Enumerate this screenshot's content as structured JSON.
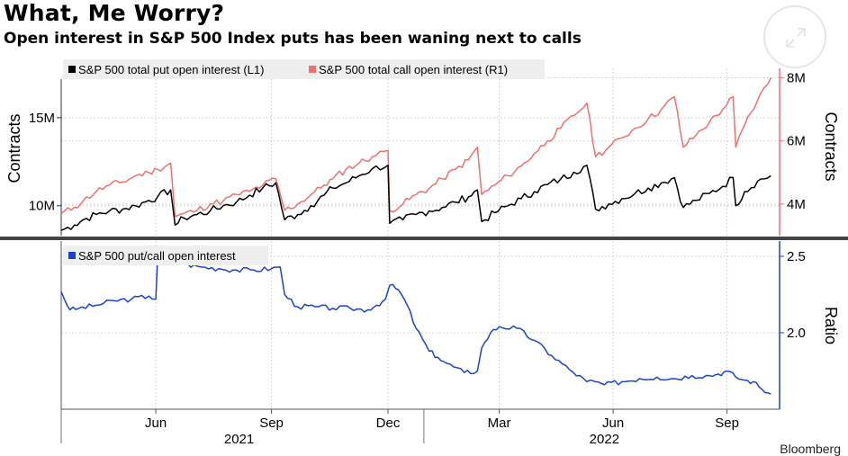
{
  "header": {
    "title": "What, Me Worry?",
    "subtitle": "Open interest in S&P 500 Index puts has been waning next to calls"
  },
  "source": "Bloomberg",
  "colors": {
    "put": "#000000",
    "call": "#f07070",
    "ratio": "#1c44c4",
    "axis_right": "#f07070",
    "axis_ratio": "#1c44c4",
    "divider": "#444444"
  },
  "chart_data": [
    {
      "type": "line",
      "panel": "top",
      "ylabel_left": "Contracts",
      "ylabel_right": "Contracts",
      "ylim_left": [
        8.3,
        17.8
      ],
      "ylim_right": [
        3.0,
        8.3
      ],
      "yticks_left": [
        {
          "value": 10,
          "label": "10M"
        },
        {
          "value": 15,
          "label": "15M"
        }
      ],
      "yticks_right": [
        {
          "value": 4,
          "label": "4M"
        },
        {
          "value": 6,
          "label": "6M"
        },
        {
          "value": 8,
          "label": "8M"
        }
      ],
      "x_unit": "weeks since start",
      "xlim": [
        0,
        82
      ],
      "grid": true,
      "legend_position": "top-left",
      "series": [
        {
          "name": "S&P 500 total put open interest (L1)",
          "axis": "left",
          "x": [
            0,
            1.5,
            2.5,
            4,
            5.5,
            7,
            8.5,
            10,
            11,
            12.5,
            13,
            14,
            15.5,
            17,
            18.5,
            20,
            21.5,
            23,
            24.5,
            25.5,
            27,
            28.5,
            30,
            31,
            32.5,
            34,
            35.5,
            37.3,
            37.5,
            39,
            40.5,
            42,
            43.5,
            45,
            46.5,
            47.5,
            48,
            49.5,
            51,
            52.5,
            54,
            55.5,
            57,
            58.5,
            60,
            61,
            62.5,
            64,
            65.5,
            67,
            68.5,
            70,
            71,
            72.5,
            74,
            75.5,
            76.7,
            77,
            78,
            79.5,
            81
          ],
          "values": [
            8.6,
            8.9,
            9.2,
            9.5,
            9.7,
            9.8,
            10.0,
            10.3,
            10.5,
            10.9,
            8.9,
            9.3,
            9.5,
            9.7,
            10.0,
            10.2,
            10.6,
            11.0,
            11.3,
            9.2,
            9.5,
            10.0,
            10.6,
            11.0,
            11.3,
            11.7,
            12.1,
            12.3,
            9.0,
            9.2,
            9.5,
            9.7,
            9.9,
            10.2,
            10.5,
            10.9,
            9.1,
            9.6,
            10.0,
            10.4,
            10.8,
            11.2,
            11.5,
            11.9,
            12.3,
            9.8,
            10.1,
            10.4,
            10.7,
            11.0,
            11.3,
            11.6,
            9.9,
            10.3,
            10.7,
            11.1,
            11.6,
            10.0,
            10.8,
            11.4,
            11.7
          ]
        },
        {
          "name": "S&P 500 total call open interest (R1)",
          "axis": "right",
          "x": [
            0,
            1.5,
            2.5,
            4,
            5.5,
            7,
            8.5,
            10,
            11,
            12.5,
            13,
            14,
            15.5,
            17,
            18.5,
            20,
            21.5,
            23,
            24.5,
            25.5,
            27,
            28.5,
            30,
            31,
            32.5,
            34,
            35.5,
            37.3,
            37.5,
            39,
            40.5,
            42,
            43.5,
            45,
            46.5,
            47.5,
            48,
            49.5,
            51,
            52.5,
            54,
            55.5,
            57,
            58.5,
            60,
            61,
            62.5,
            64,
            65.5,
            67,
            68.5,
            70,
            71,
            72.5,
            74,
            75.5,
            76.7,
            77,
            78,
            79.5,
            81
          ],
          "values": [
            3.7,
            3.9,
            4.1,
            4.4,
            4.6,
            4.7,
            4.9,
            5.0,
            5.1,
            5.3,
            3.6,
            3.7,
            3.8,
            4.0,
            4.1,
            4.3,
            4.4,
            4.6,
            4.8,
            3.8,
            4.0,
            4.3,
            4.6,
            4.8,
            5.1,
            5.3,
            5.5,
            5.7,
            3.8,
            4.0,
            4.3,
            4.5,
            4.8,
            5.1,
            5.4,
            5.8,
            4.3,
            4.6,
            4.9,
            5.2,
            5.6,
            6.0,
            6.4,
            6.8,
            7.2,
            5.5,
            5.8,
            6.1,
            6.4,
            6.7,
            7.0,
            7.4,
            5.8,
            6.2,
            6.6,
            7.0,
            7.4,
            5.8,
            6.5,
            7.3,
            8.0
          ]
        }
      ]
    },
    {
      "type": "line",
      "panel": "bottom",
      "ylabel_right": "Ratio",
      "ylim_right": [
        1.5,
        2.6
      ],
      "yticks_right": [
        {
          "value": 2.0,
          "label": "2.0"
        },
        {
          "value": 2.5,
          "label": "2.5"
        }
      ],
      "x_unit": "weeks since start",
      "xlim": [
        0,
        82
      ],
      "grid": true,
      "legend_position": "top-left",
      "series": [
        {
          "name": "S&P 500 put/call open interest",
          "axis": "right",
          "x": [
            0,
            1,
            2,
            4,
            6,
            8,
            10,
            10.8,
            11,
            12,
            14,
            16,
            18,
            20,
            22,
            24,
            25,
            25.5,
            27,
            29,
            31,
            33,
            35,
            36,
            37,
            37.5,
            38.5,
            39.5,
            40.5,
            42,
            43,
            44,
            46,
            47.5,
            48,
            49,
            50,
            52,
            54,
            56,
            58,
            60,
            61,
            62,
            64,
            66,
            68,
            70,
            72,
            74,
            75,
            76,
            77,
            78,
            79,
            80,
            81
          ],
          "values": [
            2.27,
            2.15,
            2.16,
            2.18,
            2.21,
            2.22,
            2.24,
            2.22,
            2.48,
            2.47,
            2.45,
            2.43,
            2.42,
            2.41,
            2.41,
            2.42,
            2.43,
            2.25,
            2.17,
            2.17,
            2.16,
            2.16,
            2.15,
            2.18,
            2.22,
            2.31,
            2.28,
            2.18,
            2.03,
            1.88,
            1.84,
            1.8,
            1.74,
            1.75,
            1.9,
            2.0,
            2.04,
            2.03,
            1.95,
            1.85,
            1.76,
            1.68,
            1.68,
            1.66,
            1.68,
            1.7,
            1.71,
            1.7,
            1.72,
            1.72,
            1.73,
            1.75,
            1.71,
            1.69,
            1.68,
            1.63,
            1.6
          ]
        }
      ]
    }
  ],
  "x_axis": {
    "ticks": [
      {
        "value": 10.8,
        "label": "Jun"
      },
      {
        "value": 24.0,
        "label": "Sep"
      },
      {
        "value": 37.3,
        "label": "Dec"
      },
      {
        "value": 50.0,
        "label": "Mar"
      },
      {
        "value": 63.0,
        "label": "Jun"
      },
      {
        "value": 76.0,
        "label": "Sep"
      }
    ],
    "year_ticks": [
      {
        "value": 0,
        "label": ""
      },
      {
        "value": 41.4,
        "label": ""
      }
    ],
    "years": [
      {
        "value": 20.3,
        "label": "2021"
      },
      {
        "value": 62.0,
        "label": "2022"
      }
    ]
  }
}
